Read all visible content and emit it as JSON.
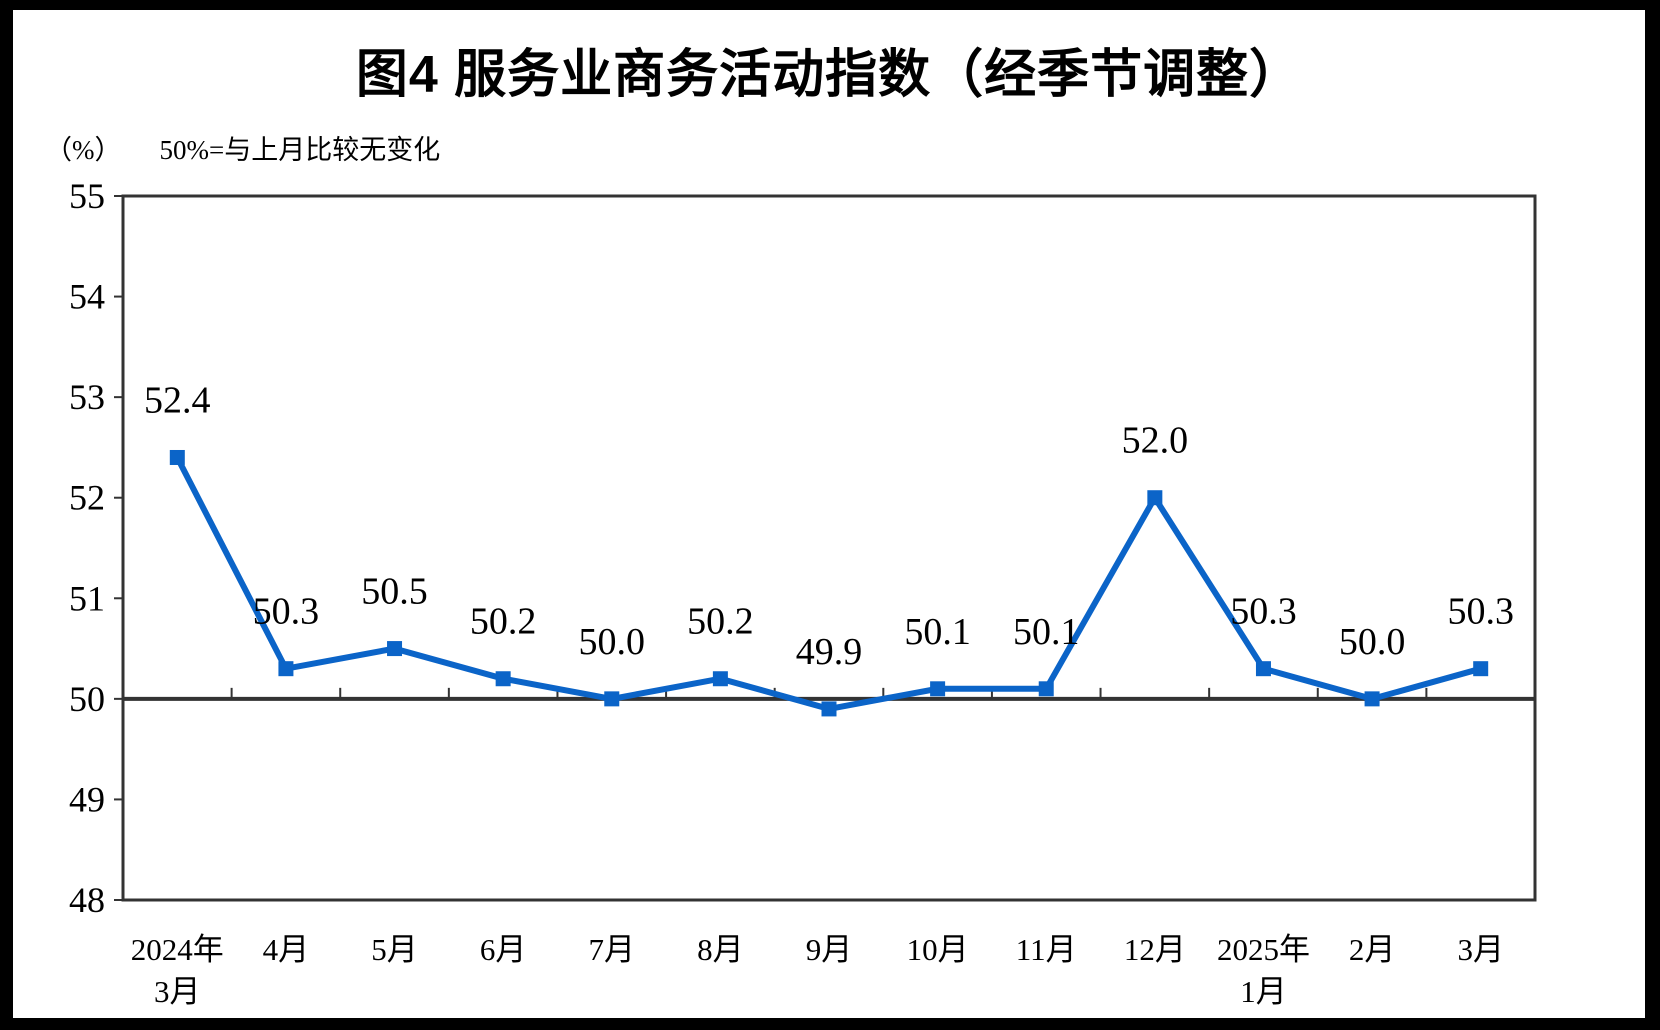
{
  "title": "图4 服务业商务活动指数（经季节调整）",
  "subtitle": {
    "unit": "（%）",
    "note": "50%=与上月比较无变化"
  },
  "chart_data": {
    "type": "line",
    "categories": [
      [
        "2024年",
        "3月"
      ],
      [
        "4月"
      ],
      [
        "5月"
      ],
      [
        "6月"
      ],
      [
        "7月"
      ],
      [
        "8月"
      ],
      [
        "9月"
      ],
      [
        "10月"
      ],
      [
        "11月"
      ],
      [
        "12月"
      ],
      [
        "2025年",
        "1月"
      ],
      [
        "2月"
      ],
      [
        "3月"
      ]
    ],
    "series": [
      {
        "name": "服务业商务活动指数",
        "values": [
          52.4,
          50.3,
          50.5,
          50.2,
          50.0,
          50.2,
          49.9,
          50.1,
          50.1,
          52.0,
          50.3,
          50.0,
          50.3
        ]
      }
    ],
    "data_labels": [
      "52.4",
      "50.3",
      "50.5",
      "50.2",
      "50.0",
      "50.2",
      "49.9",
      "50.1",
      "50.1",
      "52.0",
      "50.3",
      "50.0",
      "50.3"
    ],
    "ylim": [
      48,
      55
    ],
    "ytick_step": 1,
    "ytick_labels": [
      "48",
      "49",
      "50",
      "51",
      "52",
      "53",
      "54",
      "55"
    ],
    "reference_line": 50,
    "grid": false,
    "legend": "none",
    "line_color": "#0B64C8",
    "marker": "square",
    "axis_color": "#333333",
    "label_color": "#000000",
    "xlabel": "",
    "ylabel": "（%）"
  }
}
